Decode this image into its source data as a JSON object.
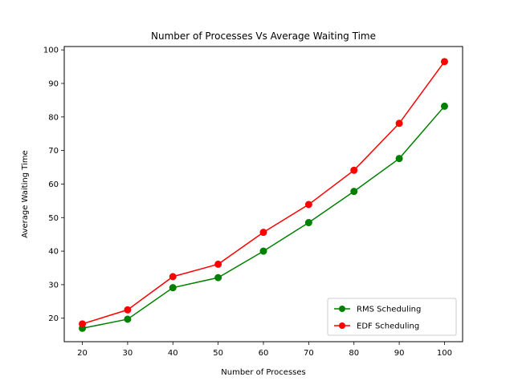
{
  "chart_data": {
    "type": "line",
    "title": "Number of Processes Vs Average Waiting Time",
    "xlabel": "Number of Processes",
    "ylabel": "Average Waiting Time",
    "x": [
      20,
      30,
      40,
      50,
      60,
      70,
      80,
      90,
      100
    ],
    "xticks": [
      20,
      30,
      40,
      50,
      60,
      70,
      80,
      90,
      100
    ],
    "yticks": [
      20,
      30,
      40,
      50,
      60,
      70,
      80,
      90,
      100
    ],
    "xlim": [
      16,
      104
    ],
    "ylim": [
      13,
      101
    ],
    "grid": false,
    "legend_position": "lower-right",
    "series": [
      {
        "name": "RMS Scheduling",
        "color": "#008000",
        "marker": "circle",
        "values": [
          17.0,
          19.7,
          29.1,
          32.1,
          40.0,
          48.5,
          57.8,
          67.6,
          83.2
        ]
      },
      {
        "name": "EDF Scheduling",
        "color": "#ff0000",
        "marker": "circle",
        "values": [
          18.3,
          22.5,
          32.4,
          36.1,
          45.6,
          53.9,
          64.1,
          78.1,
          96.5
        ]
      }
    ]
  }
}
